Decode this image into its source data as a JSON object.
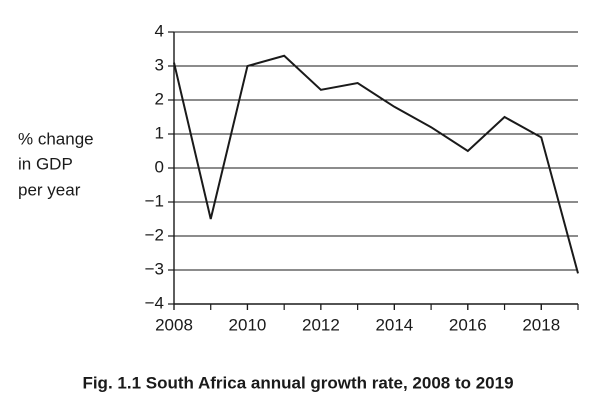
{
  "chart_data": {
    "type": "line",
    "title": "Fig. 1.1 South Africa annual growth rate, 2008 to 2019",
    "ylabel": [
      "% change",
      "in GDP",
      "per year"
    ],
    "x": [
      2008,
      2009,
      2010,
      2011,
      2012,
      2013,
      2014,
      2015,
      2016,
      2017,
      2018,
      2019
    ],
    "series": [
      {
        "color": "#1a1a1a",
        "values": [
          3.1,
          -1.5,
          3.0,
          3.3,
          2.3,
          2.5,
          1.8,
          1.2,
          0.5,
          1.5,
          0.9,
          -3.1
        ]
      }
    ],
    "xlim": [
      2008,
      2019
    ],
    "xticks": [
      2008,
      2010,
      2012,
      2014,
      2016,
      2018
    ],
    "ylim": [
      -4,
      4
    ],
    "yticks": [
      {
        "value": -4,
        "label": "−4"
      },
      {
        "value": -3,
        "label": "−3"
      },
      {
        "value": -2,
        "label": "−2"
      },
      {
        "value": -1,
        "label": "−1"
      },
      0,
      1,
      2,
      3,
      4
    ],
    "grid": true
  }
}
